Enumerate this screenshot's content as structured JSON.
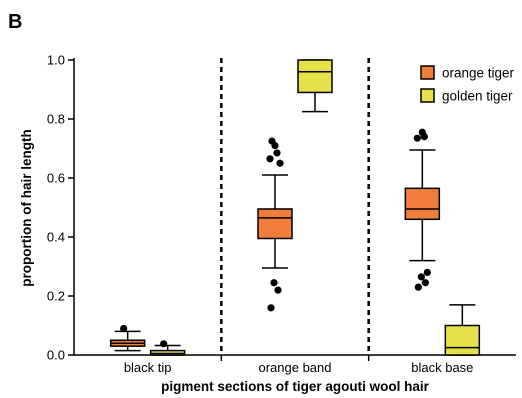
{
  "panel_label": "B",
  "chart_data": {
    "type": "box",
    "categories": [
      "black tip",
      "orange band",
      "black base"
    ],
    "xlabel": "pigment sections of tiger agouti wool hair",
    "ylabel": "proportion of hair length",
    "ylim": [
      0,
      1.0
    ],
    "yticks": [
      "0.0",
      "0.2",
      "0.4",
      "0.6",
      "0.8",
      "1.0"
    ],
    "legend": "top-right",
    "series": [
      {
        "name": "orange tiger",
        "color": "#f07d3c",
        "boxes": [
          {
            "category": "black tip",
            "whisker_low": 0.015,
            "q1": 0.03,
            "median": 0.04,
            "q3": 0.05,
            "whisker_high": 0.08,
            "outliers": [
              0.09
            ]
          },
          {
            "category": "orange band",
            "whisker_low": 0.295,
            "q1": 0.395,
            "median": 0.465,
            "q3": 0.495,
            "whisker_high": 0.61,
            "outliers": [
              0.16,
              0.22,
              0.245,
              0.65,
              0.665,
              0.685,
              0.71,
              0.725
            ]
          },
          {
            "category": "black base",
            "whisker_low": 0.32,
            "q1": 0.46,
            "median": 0.495,
            "q3": 0.565,
            "whisker_high": 0.695,
            "outliers": [
              0.23,
              0.245,
              0.265,
              0.28,
              0.735,
              0.74,
              0.755
            ]
          }
        ]
      },
      {
        "name": "golden tiger",
        "color": "#e6e14a",
        "boxes": [
          {
            "category": "black tip",
            "whisker_low": 0.0,
            "q1": 0.0,
            "median": 0.005,
            "q3": 0.015,
            "whisker_high": 0.032,
            "outliers": [
              0.038
            ]
          },
          {
            "category": "orange band",
            "whisker_low": 0.825,
            "q1": 0.89,
            "median": 0.96,
            "q3": 1.0,
            "whisker_high": 1.0,
            "outliers": []
          },
          {
            "category": "black base",
            "whisker_low": 0.0,
            "q1": 0.0,
            "median": 0.025,
            "q3": 0.1,
            "whisker_high": 0.17,
            "outliers": []
          }
        ]
      }
    ]
  }
}
